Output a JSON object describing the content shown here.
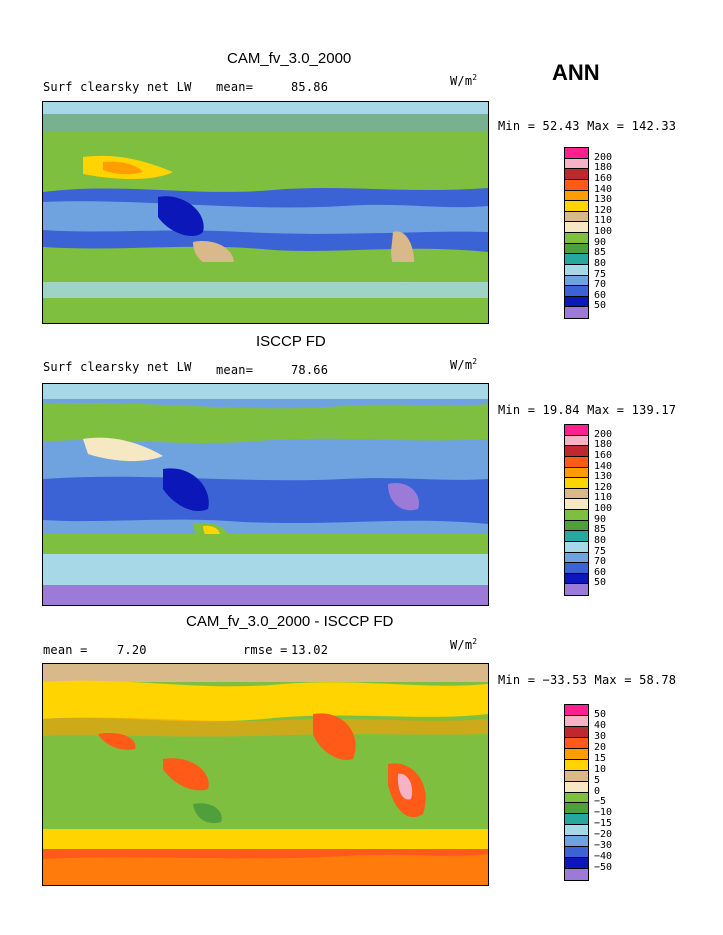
{
  "header": {
    "season": "ANN"
  },
  "units": {
    "base": "W/m",
    "exp": "2"
  },
  "panels": [
    {
      "title": "CAM_fv_3.0_2000",
      "field": "Surf clearsky net LW",
      "mean_label": "mean=",
      "mean_value": "85.86",
      "minmax": "Min =  52.43 Max = 142.33",
      "legend": {
        "labels": [
          "200",
          "180",
          "160",
          "140",
          "130",
          "120",
          "110",
          "100",
          "90",
          "85",
          "80",
          "75",
          "70",
          "60",
          "50"
        ],
        "colors": [
          "#ff1f8f",
          "#f7b3c6",
          "#c0282f",
          "#ff5a17",
          "#ff9c00",
          "#ffd400",
          "#d9b98a",
          "#f5e8c2",
          "#7fbf3f",
          "#4fa03c",
          "#27a89e",
          "#a6d8e8",
          "#6fa3e0",
          "#3b63d6",
          "#0b17b8",
          "#9b7ad8"
        ]
      }
    },
    {
      "title": "ISCCP FD",
      "field": "Surf clearsky net LW",
      "mean_label": "mean=",
      "mean_value": "78.66",
      "minmax": "Min =  19.84 Max = 139.17",
      "legend": {
        "labels": [
          "200",
          "180",
          "160",
          "140",
          "130",
          "120",
          "110",
          "100",
          "90",
          "85",
          "80",
          "75",
          "70",
          "60",
          "50"
        ],
        "colors": [
          "#ff1f8f",
          "#f7b3c6",
          "#c0282f",
          "#ff5a17",
          "#ff9c00",
          "#ffd400",
          "#d9b98a",
          "#f5e8c2",
          "#7fbf3f",
          "#4fa03c",
          "#27a89e",
          "#a6d8e8",
          "#6fa3e0",
          "#3b63d6",
          "#0b17b8",
          "#9b7ad8"
        ]
      }
    },
    {
      "title": "CAM_fv_3.0_2000 - ISCCP FD",
      "mean_label": "mean =",
      "mean_value": "7.20",
      "rmse_label": "rmse =",
      "rmse_value": "13.02",
      "minmax": "Min = −33.53 Max =  58.78",
      "legend": {
        "labels": [
          "50",
          "40",
          "30",
          "20",
          "15",
          "10",
          "5",
          "0",
          "−5",
          "−10",
          "−15",
          "−20",
          "−30",
          "−40",
          "−50"
        ],
        "colors": [
          "#ff1f8f",
          "#f7b3c6",
          "#c0282f",
          "#ff5a17",
          "#ff9c00",
          "#ffd400",
          "#d9b98a",
          "#f5e8c2",
          "#7fbf3f",
          "#4fa03c",
          "#27a89e",
          "#a6d8e8",
          "#6fa3e0",
          "#3b63d6",
          "#0b17b8",
          "#9b7ad8"
        ]
      }
    }
  ]
}
